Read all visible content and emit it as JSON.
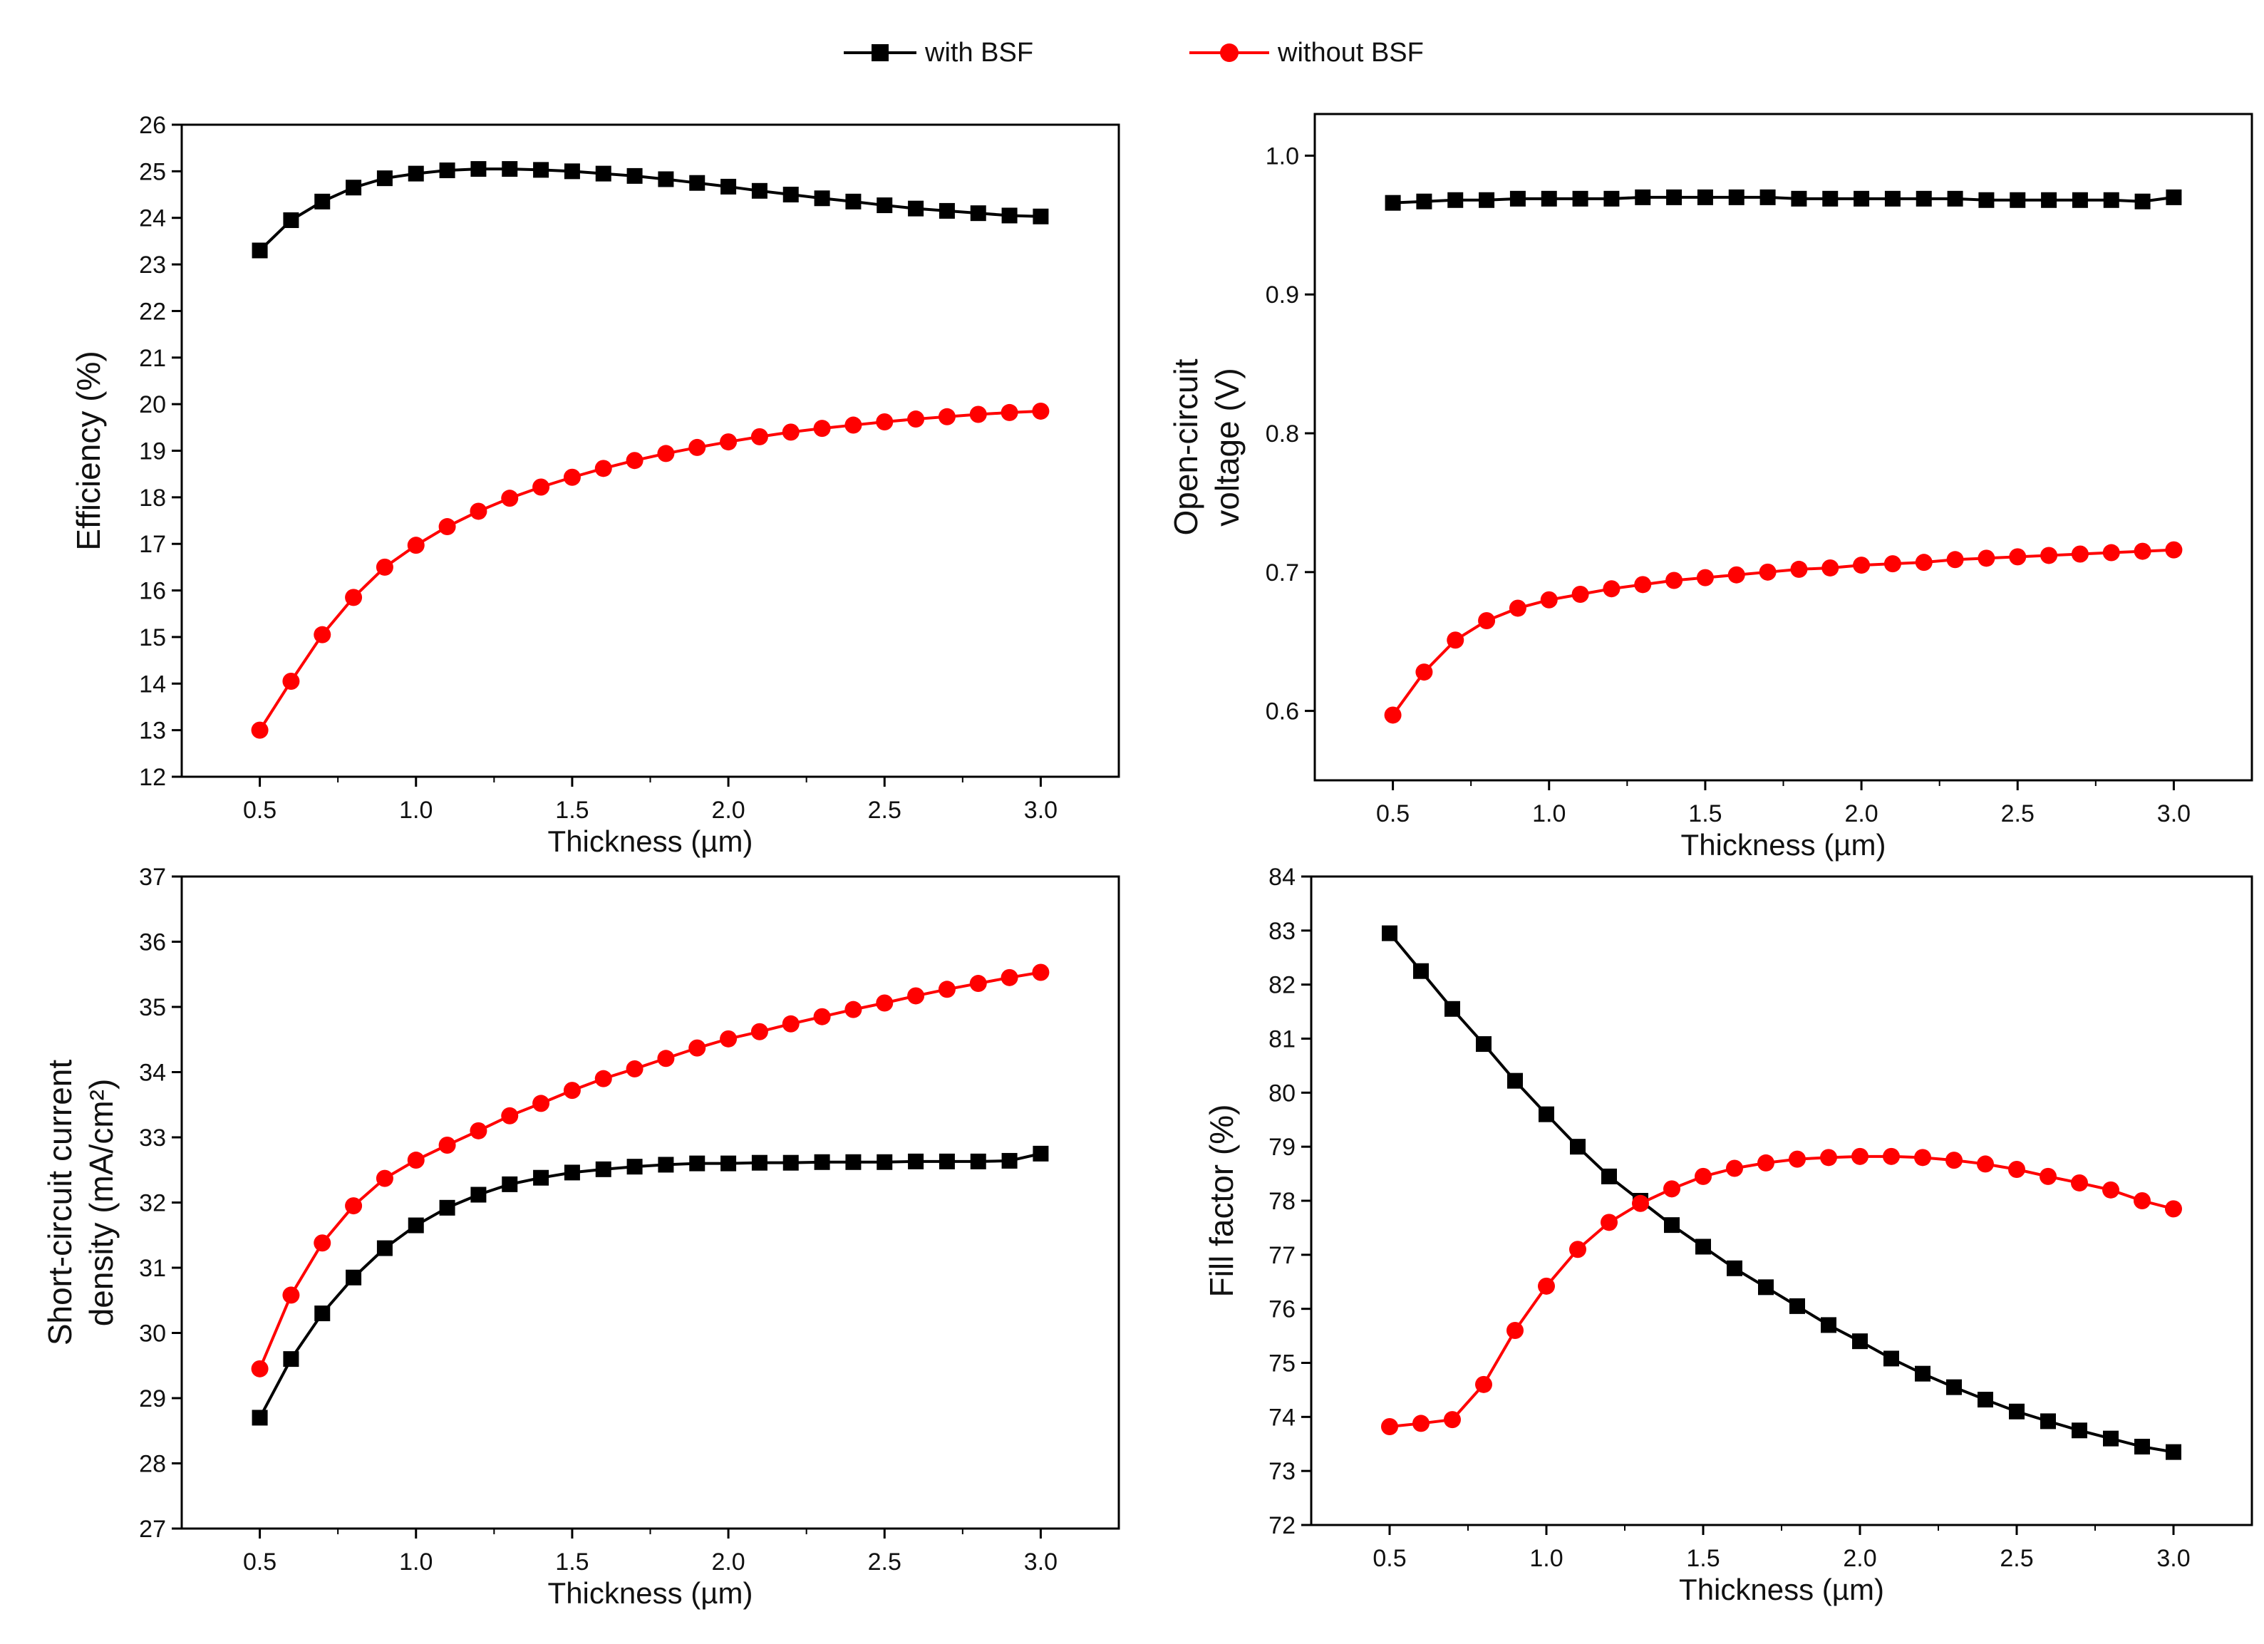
{
  "legend": [
    {
      "name": "with BSF",
      "color": "#000000",
      "marker": "square"
    },
    {
      "name": "without BSF",
      "color": "#ff0000",
      "marker": "circle"
    }
  ],
  "chart_data": [
    {
      "type": "line",
      "xlabel": "Thickness (µm)",
      "ylabel": "Efficiency (%)",
      "xlim": [
        0.25,
        3.25
      ],
      "ylim": [
        12,
        26
      ],
      "xticks": [
        "0.5",
        "1.0",
        "1.5",
        "2.0",
        "2.5",
        "3.0"
      ],
      "yticks": [
        "12",
        "13",
        "14",
        "15",
        "16",
        "17",
        "18",
        "19",
        "20",
        "21",
        "22",
        "23",
        "24",
        "25",
        "26"
      ],
      "x": [
        0.5,
        0.6,
        0.7,
        0.8,
        0.9,
        1.0,
        1.1,
        1.2,
        1.3,
        1.4,
        1.5,
        1.6,
        1.7,
        1.8,
        1.9,
        2.0,
        2.1,
        2.2,
        2.3,
        2.4,
        2.5,
        2.6,
        2.7,
        2.8,
        2.9,
        3.0
      ],
      "series": [
        {
          "name": "with BSF",
          "values": [
            23.3,
            23.95,
            24.35,
            24.65,
            24.85,
            24.95,
            25.02,
            25.05,
            25.05,
            25.03,
            25.0,
            24.95,
            24.9,
            24.83,
            24.75,
            24.67,
            24.58,
            24.5,
            24.42,
            24.35,
            24.27,
            24.2,
            24.15,
            24.1,
            24.05,
            24.03
          ]
        },
        {
          "name": "without BSF",
          "values": [
            13.0,
            14.05,
            15.05,
            15.85,
            16.5,
            16.97,
            17.37,
            17.7,
            17.98,
            18.22,
            18.43,
            18.62,
            18.79,
            18.94,
            19.07,
            19.19,
            19.3,
            19.4,
            19.48,
            19.55,
            19.62,
            19.68,
            19.73,
            19.78,
            19.82,
            19.85
          ]
        }
      ]
    },
    {
      "type": "line",
      "xlabel": "Thickness (µm)",
      "ylabel": [
        "Open-circuit",
        "voltage (V)"
      ],
      "xlim": [
        0.25,
        3.25
      ],
      "ylim": [
        0.55,
        1.03
      ],
      "xticks": [
        "0.5",
        "1.0",
        "1.5",
        "2.0",
        "2.5",
        "3.0"
      ],
      "yticks": [
        "0.6",
        "0.7",
        "0.8",
        "0.9",
        "1.0"
      ],
      "x": [
        0.5,
        0.6,
        0.7,
        0.8,
        0.9,
        1.0,
        1.1,
        1.2,
        1.3,
        1.4,
        1.5,
        1.6,
        1.7,
        1.8,
        1.9,
        2.0,
        2.1,
        2.2,
        2.3,
        2.4,
        2.5,
        2.6,
        2.7,
        2.8,
        2.9,
        3.0
      ],
      "series": [
        {
          "name": "with BSF",
          "values": [
            0.966,
            0.967,
            0.968,
            0.968,
            0.969,
            0.969,
            0.969,
            0.969,
            0.97,
            0.97,
            0.97,
            0.97,
            0.97,
            0.969,
            0.969,
            0.969,
            0.969,
            0.969,
            0.969,
            0.968,
            0.968,
            0.968,
            0.968,
            0.968,
            0.967,
            0.97
          ]
        },
        {
          "name": "without BSF",
          "values": [
            0.597,
            0.628,
            0.651,
            0.665,
            0.674,
            0.68,
            0.684,
            0.688,
            0.691,
            0.694,
            0.696,
            0.698,
            0.7,
            0.702,
            0.703,
            0.705,
            0.706,
            0.707,
            0.709,
            0.71,
            0.711,
            0.712,
            0.713,
            0.714,
            0.715,
            0.716
          ]
        }
      ]
    },
    {
      "type": "line",
      "xlabel": "Thickness (µm)",
      "ylabel": [
        "Short-circuit current",
        "density (mA/cm²)"
      ],
      "xlim": [
        0.25,
        3.25
      ],
      "ylim": [
        27,
        37
      ],
      "xticks": [
        "0.5",
        "1.0",
        "1.5",
        "2.0",
        "2.5",
        "3.0"
      ],
      "yticks": [
        "27",
        "28",
        "29",
        "30",
        "31",
        "32",
        "33",
        "34",
        "35",
        "36",
        "37"
      ],
      "x": [
        0.5,
        0.6,
        0.7,
        0.8,
        0.9,
        1.0,
        1.1,
        1.2,
        1.3,
        1.4,
        1.5,
        1.6,
        1.7,
        1.8,
        1.9,
        2.0,
        2.1,
        2.2,
        2.3,
        2.4,
        2.5,
        2.6,
        2.7,
        2.8,
        2.9,
        3.0
      ],
      "series": [
        {
          "name": "with BSF",
          "values": [
            28.7,
            29.6,
            30.3,
            30.85,
            31.3,
            31.65,
            31.92,
            32.12,
            32.28,
            32.38,
            32.46,
            32.51,
            32.55,
            32.58,
            32.6,
            32.6,
            32.61,
            32.61,
            32.62,
            32.62,
            32.62,
            32.63,
            32.63,
            32.63,
            32.64,
            32.75
          ]
        },
        {
          "name": "without BSF",
          "values": [
            29.45,
            30.58,
            31.38,
            31.95,
            32.37,
            32.65,
            32.88,
            33.1,
            33.33,
            33.52,
            33.72,
            33.9,
            34.05,
            34.21,
            34.37,
            34.51,
            34.62,
            34.74,
            34.85,
            34.96,
            35.06,
            35.17,
            35.27,
            35.36,
            35.45,
            35.53
          ]
        }
      ]
    },
    {
      "type": "line",
      "xlabel": "Thickness (µm)",
      "ylabel": "Fill factor (%)",
      "xlim": [
        0.25,
        3.25
      ],
      "ylim": [
        72,
        84
      ],
      "xticks": [
        "0.5",
        "1.0",
        "1.5",
        "2.0",
        "2.5",
        "3.0"
      ],
      "yticks": [
        "72",
        "73",
        "74",
        "75",
        "76",
        "77",
        "78",
        "79",
        "80",
        "81",
        "82",
        "83",
        "84"
      ],
      "x": [
        0.5,
        0.6,
        0.7,
        0.8,
        0.9,
        1.0,
        1.1,
        1.2,
        1.3,
        1.4,
        1.5,
        1.6,
        1.7,
        1.8,
        1.9,
        2.0,
        2.1,
        2.2,
        2.3,
        2.4,
        2.5,
        2.6,
        2.7,
        2.8,
        2.9,
        3.0
      ],
      "series": [
        {
          "name": "with BSF",
          "values": [
            82.95,
            82.25,
            81.55,
            80.9,
            80.22,
            79.6,
            79.0,
            78.45,
            78.0,
            77.55,
            77.15,
            76.75,
            76.4,
            76.05,
            75.7,
            75.4,
            75.08,
            74.8,
            74.55,
            74.32,
            74.1,
            73.92,
            73.75,
            73.6,
            73.45,
            73.35
          ]
        },
        {
          "name": "without BSF",
          "values": [
            73.82,
            73.88,
            73.95,
            74.6,
            75.6,
            76.42,
            77.1,
            77.6,
            77.95,
            78.22,
            78.45,
            78.6,
            78.7,
            78.77,
            78.8,
            78.82,
            78.82,
            78.8,
            78.75,
            78.68,
            78.58,
            78.45,
            78.33,
            78.2,
            78.0,
            77.85
          ]
        }
      ]
    }
  ]
}
